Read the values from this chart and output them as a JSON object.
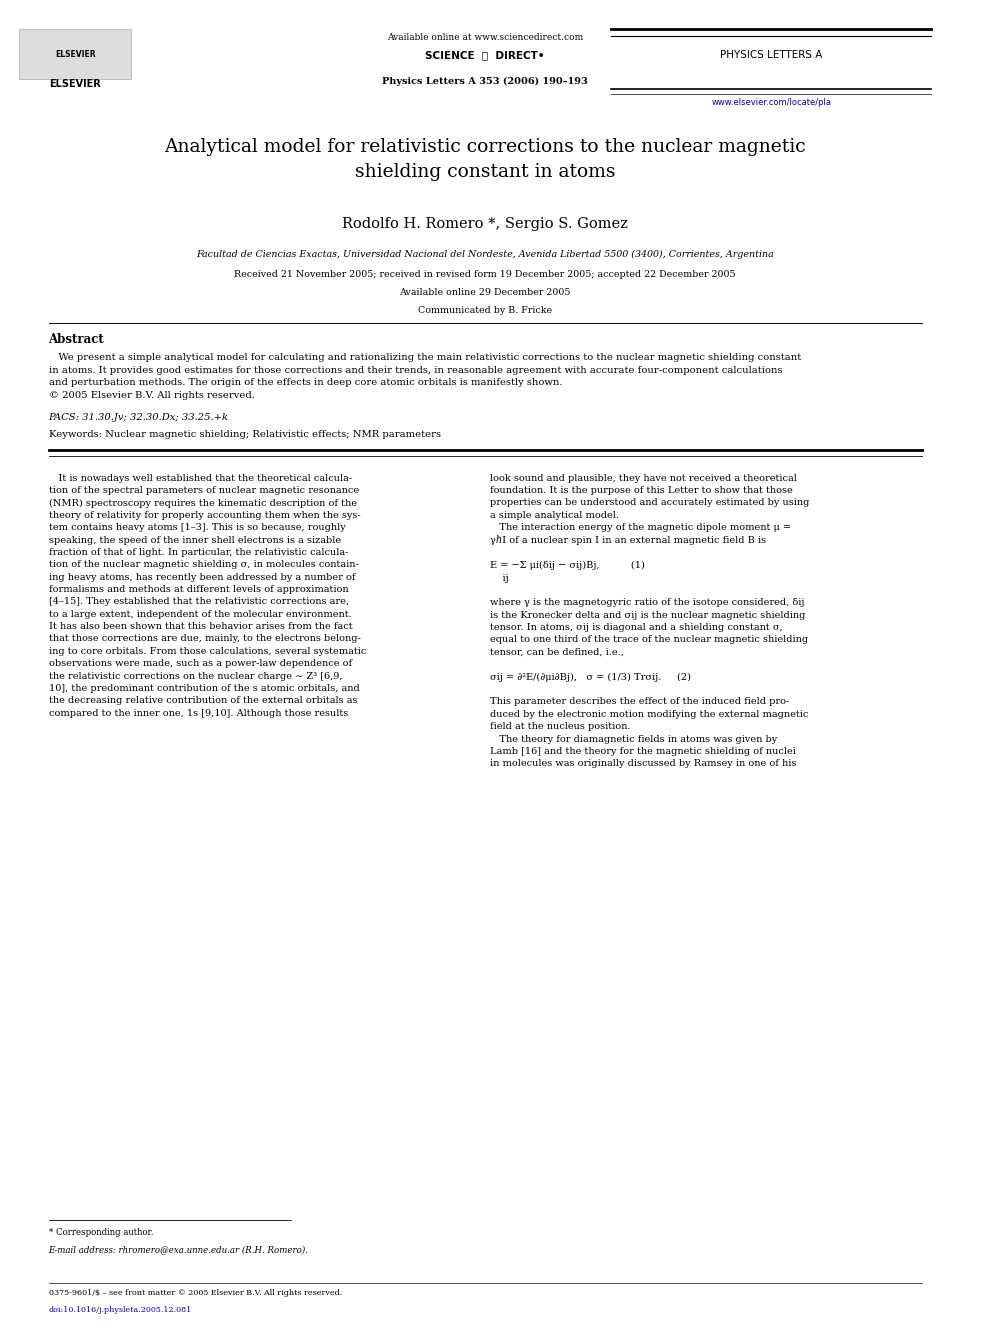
{
  "bg_color": "#ffffff",
  "page_width": 9.92,
  "page_height": 13.23,
  "header": {
    "available_online": "Available online at www.sciencedirect.com",
    "journal_name": "PHYSICS LETTERS A",
    "journal_ref": "Physics Letters A 353 (2006) 190–193",
    "website": "www.elsevier.com/locate/pla"
  },
  "title": "Analytical model for relativistic corrections to the nuclear magnetic\nshielding constant in atoms",
  "authors": "Rodolfo H. Romero *, Sergio S. Gomez",
  "affiliation": "Facultad de Ciencias Exactas, Universidad Nacional del Nordeste, Avenida Libertad 5500 (3400), Corrientes, Argentina",
  "received": "Received 21 November 2005; received in revised form 19 December 2005; accepted 22 December 2005",
  "available_online_date": "Available online 29 December 2005",
  "communicated": "Communicated by B. Fricke",
  "abstract_title": "Abstract",
  "abstract_text": "   We present a simple analytical model for calculating and rationalizing the main relativistic corrections to the nuclear magnetic shielding constant\nin atoms. It provides good estimates for those corrections and their trends, in reasonable agreement with accurate four-component calculations\nand perturbation methods. The origin of the effects in deep core atomic orbitals is manifestly shown.\n© 2005 Elsevier B.V. All rights reserved.",
  "pacs": "PACS: 31.30.Jv; 32.30.Dx; 33.25.+k",
  "keywords": "Keywords: Nuclear magnetic shielding; Relativistic effects; NMR parameters",
  "body_left_col": "   It is nowadays well established that the theoretical calcula-\ntion of the spectral parameters of nuclear magnetic resonance\n(NMR) spectroscopy requires the kinematic description of the\ntheory of relativity for properly accounting them when the sys-\ntem contains heavy atoms [1–3]. This is so because, roughly\nspeaking, the speed of the inner shell electrons is a sizable\nfraction of that of light. In particular, the relativistic calcula-\ntion of the nuclear magnetic shielding σ, in molecules contain-\ning heavy atoms, has recently been addressed by a number of\nformalisms and methods at different levels of approximation\n[4–15]. They established that the relativistic corrections are,\nto a large extent, independent of the molecular environment.\nIt has also been shown that this behavior arises from the fact\nthat those corrections are due, mainly, to the electrons belong-\ning to core orbitals. From those calculations, several systematic\nobservations were made, such as a power-law dependence of\nthe relativistic corrections on the nuclear charge ∼ Z³ [6,9,\n10], the predominant contribution of the s atomic orbitals, and\nthe decreasing relative contribution of the external orbitals as\ncompared to the inner one, 1s [9,10]. Although those results",
  "body_right_col": "look sound and plausible, they have not received a theoretical\nfoundation. It is the purpose of this Letter to show that those\nproperties can be understood and accurately estimated by using\na simple analytical model.\n   The interaction energy of the magnetic dipole moment μ =\nγℏI of a nuclear spin I in an external magnetic field B is\n\nE = −Σ μi(δij − σij)Bj,          (1)\n    ij\n\nwhere γ is the magnetogyric ratio of the isotope considered, δij\nis the Kronecker delta and σij is the nuclear magnetic shielding\ntensor. In atoms, σij is diagonal and a shielding constant σ,\nequal to one third of the trace of the nuclear magnetic shielding\ntensor, can be defined, i.e.,\n\nσij = ∂²E/(∂μi∂Bj),   σ = (1/3) Trσij.     (2)\n\nThis parameter describes the effect of the induced field pro-\nduced by the electronic motion modifying the external magnetic\nfield at the nucleus position.\n   The theory for diamagnetic fields in atoms was given by\nLamb [16] and the theory for the magnetic shielding of nuclei\nin molecules was originally discussed by Ramsey in one of his",
  "footnote_star": "* Corresponding author.",
  "footnote_email": "E-mail address: rhromero@exa.unne.edu.ar (R.H. Romero).",
  "footer_issn": "0375-9601/$ – see front matter © 2005 Elsevier B.V. All rights reserved.",
  "footer_doi": "doi:10.1016/j.physleta.2005.12.081"
}
